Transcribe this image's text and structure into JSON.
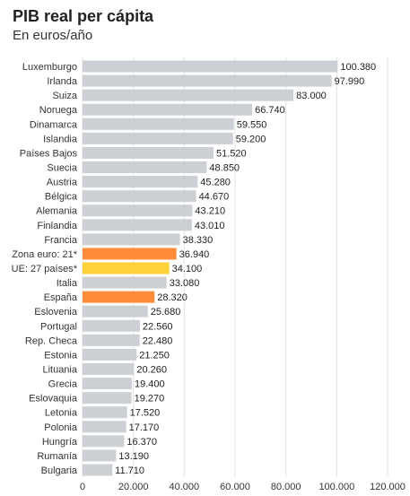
{
  "title": "PIB real per cápita",
  "subtitle": "En euros/año",
  "chart_data": {
    "type": "bar",
    "orientation": "horizontal",
    "categories": [
      "Luxemburgo",
      "Irlanda",
      "Suiza",
      "Noruega",
      "Dinamarca",
      "Islandia",
      "Países Bajos",
      "Suecia",
      "Austria",
      "Bélgica",
      "Alemania",
      "Finlandia",
      "Francia",
      "Zona euro: 21*",
      "UE: 27 países*",
      "Italia",
      "España",
      "Eslovenia",
      "Portugal",
      "Rep. Checa",
      "Estonia",
      "Lituania",
      "Grecia",
      "Eslovaquia",
      "Letonia",
      "Polonia",
      "Hungría",
      "Rumanía",
      "Bulgaria"
    ],
    "values": [
      100380,
      97990,
      83000,
      66740,
      59550,
      59200,
      51520,
      48850,
      45280,
      44670,
      43210,
      43010,
      38330,
      36940,
      34100,
      33080,
      28320,
      25680,
      22560,
      22480,
      21250,
      20260,
      19400,
      19270,
      17520,
      17170,
      16370,
      13190,
      11710
    ],
    "value_labels": [
      "100.380",
      "97.990",
      "83.000",
      "66.740",
      "59.550",
      "59.200",
      "51.520",
      "48.850",
      "45.280",
      "44.670",
      "43.210",
      "43.010",
      "38.330",
      "36.940",
      "34.100",
      "33.080",
      "28.320",
      "25.680",
      "22.560",
      "22.480",
      "21.250",
      "20.260",
      "19.400",
      "19.270",
      "17.520",
      "17.170",
      "16.370",
      "13.190",
      "11.710"
    ],
    "bar_colors": {
      "default": "#ccd0d5",
      "Zona euro: 21*": "#ff8c3a",
      "UE: 27 países*": "#ffd23a",
      "España": "#ff8c3a"
    },
    "xlim": [
      0,
      120000
    ],
    "xticks": [
      0,
      20000,
      40000,
      60000,
      80000,
      100000,
      120000
    ],
    "xtick_labels": [
      "0",
      "20.000",
      "40.000",
      "60.000",
      "80.000",
      "100.000",
      "120.000"
    ],
    "grid": true
  }
}
